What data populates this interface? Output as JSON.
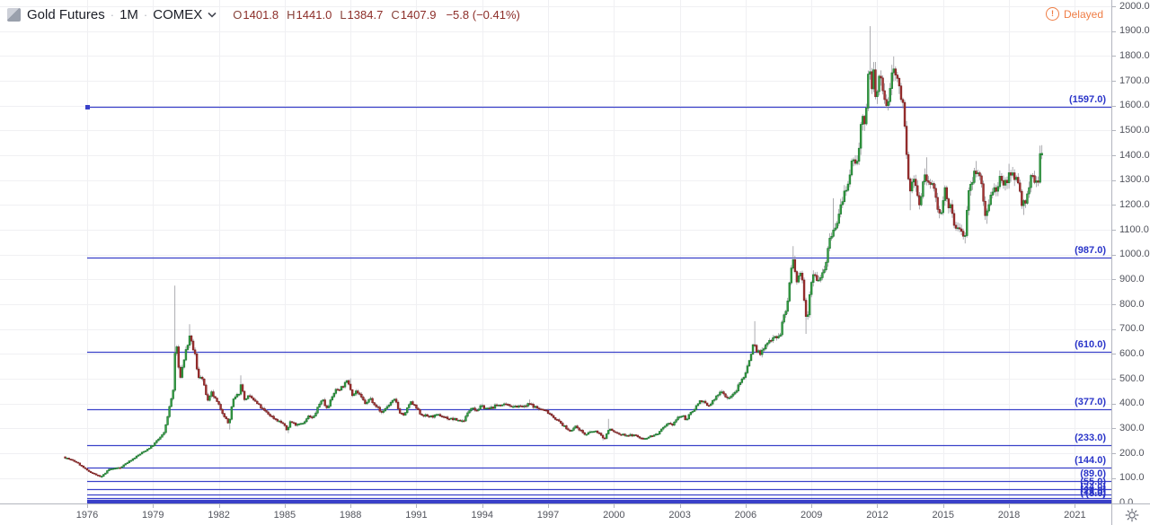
{
  "header": {
    "symbol_title": "Gold Futures",
    "interval": "1M",
    "exchange": "COMEX",
    "separator": "·",
    "ohlc": {
      "o_label": "O",
      "o": "1401.8",
      "h_label": "H",
      "h": "1441.0",
      "l_label": "L",
      "l": "1384.7",
      "c_label": "C",
      "c": "1407.9",
      "change": "−5.8 (−0.41%)"
    },
    "delayed_label": "Delayed",
    "delayed_icon_glyph": "!"
  },
  "colors": {
    "background": "#ffffff",
    "grid": "#f0f0f3",
    "axis_line": "#b2b5be",
    "axis_text": "#51535c",
    "candle_up_fill": "#3ca046",
    "candle_up_border": "#1e7d32",
    "candle_down_fill": "#a93434",
    "candle_down_border": "#7c2323",
    "wick": "#8a8a90",
    "fib_line": "#3a41c9",
    "fib_label": "#2a35c9",
    "ohlc_value": "#8c2d28",
    "delayed": "#ef7d45"
  },
  "chart_data": {
    "type": "candlestick",
    "title": "Gold Futures 1M COMEX",
    "legend_position": "top-left",
    "grid": true,
    "price_axis": {
      "min": 0,
      "max": 2000,
      "step": 100,
      "decimals": 1
    },
    "time_axis": {
      "tick_years": [
        1976,
        1979,
        1982,
        1985,
        1988,
        1991,
        1994,
        1997,
        2000,
        2003,
        2006,
        2009,
        2012,
        2015,
        2018,
        2021
      ]
    },
    "fib_levels": [
      {
        "value": 1597.0,
        "label": "(1597.0)"
      },
      {
        "value": 987.0,
        "label": "(987.0)"
      },
      {
        "value": 610.0,
        "label": "(610.0)"
      },
      {
        "value": 377.0,
        "label": "(377.0)"
      },
      {
        "value": 233.0,
        "label": "(233.0)"
      },
      {
        "value": 144.0,
        "label": "(144.0)"
      },
      {
        "value": 89.0,
        "label": "(89.0)"
      },
      {
        "value": 55.0,
        "label": "(55.0)"
      },
      {
        "value": 34.0,
        "label": "(34.0)"
      },
      {
        "value": 21.0,
        "label": "(21.0)"
      },
      {
        "value": 13.0,
        "label": "(13.0)"
      },
      {
        "value": 8.0,
        "label": "(8.0)"
      },
      {
        "value": 5.0,
        "label": ""
      },
      {
        "value": 3.0,
        "label": ""
      }
    ],
    "candles": {
      "interval": "1M",
      "start": 1975.0,
      "end": 2019.42,
      "first_open": 186,
      "noise_seed": 7,
      "noise_amp": 0.028,
      "close_keypoints": [
        [
          1975.0,
          183
        ],
        [
          1975.5,
          165
        ],
        [
          1976.0,
          131
        ],
        [
          1976.63,
          104
        ],
        [
          1977.0,
          136
        ],
        [
          1977.5,
          143
        ],
        [
          1978.0,
          173
        ],
        [
          1978.75,
          217
        ],
        [
          1979.0,
          233
        ],
        [
          1979.5,
          281
        ],
        [
          1979.75,
          385
        ],
        [
          1979.92,
          455
        ],
        [
          1980.04,
          675
        ],
        [
          1980.21,
          494
        ],
        [
          1980.5,
          614
        ],
        [
          1980.67,
          666
        ],
        [
          1980.92,
          596
        ],
        [
          1981.04,
          506
        ],
        [
          1981.21,
          513
        ],
        [
          1981.5,
          409
        ],
        [
          1981.67,
          443
        ],
        [
          1982.04,
          387
        ],
        [
          1982.46,
          315
        ],
        [
          1982.63,
          411
        ],
        [
          1982.96,
          448
        ],
        [
          1983.04,
          499
        ],
        [
          1983.13,
          408
        ],
        [
          1983.29,
          429
        ],
        [
          1983.5,
          422
        ],
        [
          1984.04,
          373
        ],
        [
          1984.5,
          342
        ],
        [
          1984.92,
          320
        ],
        [
          1985.13,
          288
        ],
        [
          1985.21,
          329
        ],
        [
          1985.5,
          317
        ],
        [
          1985.96,
          327
        ],
        [
          1986.04,
          350
        ],
        [
          1986.29,
          340
        ],
        [
          1986.71,
          423
        ],
        [
          1986.88,
          383
        ],
        [
          1987.04,
          400
        ],
        [
          1987.29,
          453
        ],
        [
          1987.54,
          462
        ],
        [
          1987.88,
          492
        ],
        [
          1988.13,
          426
        ],
        [
          1988.21,
          457
        ],
        [
          1988.71,
          397
        ],
        [
          1988.88,
          423
        ],
        [
          1989.29,
          378
        ],
        [
          1989.38,
          361
        ],
        [
          1989.88,
          408
        ],
        [
          1990.04,
          415
        ],
        [
          1990.21,
          368
        ],
        [
          1990.46,
          352
        ],
        [
          1990.71,
          408
        ],
        [
          1990.96,
          386
        ],
        [
          1991.21,
          356
        ],
        [
          1991.63,
          347
        ],
        [
          1992.04,
          354
        ],
        [
          1992.46,
          340
        ],
        [
          1992.96,
          333
        ],
        [
          1993.13,
          329
        ],
        [
          1993.54,
          392
        ],
        [
          1993.71,
          371
        ],
        [
          1993.96,
          390
        ],
        [
          1994.29,
          377
        ],
        [
          1994.71,
          396
        ],
        [
          1995.29,
          392
        ],
        [
          1995.96,
          387
        ],
        [
          1996.13,
          400
        ],
        [
          1996.5,
          382
        ],
        [
          1996.96,
          369
        ],
        [
          1997.54,
          324
        ],
        [
          1997.96,
          290
        ],
        [
          1998.29,
          308
        ],
        [
          1998.71,
          273
        ],
        [
          1998.96,
          288
        ],
        [
          1999.29,
          286
        ],
        [
          1999.54,
          255
        ],
        [
          1999.79,
          300
        ],
        [
          1999.96,
          288
        ],
        [
          2000.29,
          275
        ],
        [
          2000.96,
          272
        ],
        [
          2001.29,
          258
        ],
        [
          2001.96,
          277
        ],
        [
          2002.46,
          318
        ],
        [
          2002.63,
          313
        ],
        [
          2002.96,
          348
        ],
        [
          2003.13,
          350
        ],
        [
          2003.29,
          336
        ],
        [
          2003.96,
          416
        ],
        [
          2004.29,
          388
        ],
        [
          2004.92,
          454
        ],
        [
          2005.13,
          422
        ],
        [
          2005.46,
          436
        ],
        [
          2005.96,
          518
        ],
        [
          2006.13,
          561
        ],
        [
          2006.38,
          653
        ],
        [
          2006.46,
          613
        ],
        [
          2006.71,
          604
        ],
        [
          2006.96,
          638
        ],
        [
          2007.29,
          677
        ],
        [
          2007.54,
          665
        ],
        [
          2007.71,
          743
        ],
        [
          2007.88,
          783
        ],
        [
          2008.04,
          923
        ],
        [
          2008.17,
          975
        ],
        [
          2008.33,
          885
        ],
        [
          2008.54,
          930
        ],
        [
          2008.79,
          725
        ],
        [
          2008.88,
          815
        ],
        [
          2008.96,
          884
        ],
        [
          2009.13,
          940
        ],
        [
          2009.29,
          888
        ],
        [
          2009.46,
          927
        ],
        [
          2009.63,
          953
        ],
        [
          2009.79,
          1040
        ],
        [
          2009.96,
          1096
        ],
        [
          2010.13,
          1108
        ],
        [
          2010.29,
          1179
        ],
        [
          2010.46,
          1244
        ],
        [
          2010.63,
          1246
        ],
        [
          2010.79,
          1337
        ],
        [
          2010.96,
          1421
        ],
        [
          2011.04,
          1327
        ],
        [
          2011.29,
          1556
        ],
        [
          2011.46,
          1502
        ],
        [
          2011.63,
          1831
        ],
        [
          2011.71,
          1622
        ],
        [
          2011.83,
          1745
        ],
        [
          2011.96,
          1566
        ],
        [
          2012.04,
          1737
        ],
        [
          2012.29,
          1664
        ],
        [
          2012.38,
          1562
        ],
        [
          2012.63,
          1692
        ],
        [
          2012.71,
          1776
        ],
        [
          2012.96,
          1675
        ],
        [
          2013.04,
          1660
        ],
        [
          2013.21,
          1597
        ],
        [
          2013.29,
          1472
        ],
        [
          2013.46,
          1224
        ],
        [
          2013.63,
          1313
        ],
        [
          2013.96,
          1202
        ],
        [
          2014.13,
          1321
        ],
        [
          2014.29,
          1288
        ],
        [
          2014.54,
          1285
        ],
        [
          2014.79,
          1173
        ],
        [
          2014.96,
          1184
        ],
        [
          2015.04,
          1283
        ],
        [
          2015.21,
          1183
        ],
        [
          2015.38,
          1191
        ],
        [
          2015.54,
          1095
        ],
        [
          2015.79,
          1115
        ],
        [
          2015.96,
          1060
        ],
        [
          2016.04,
          1116
        ],
        [
          2016.13,
          1234
        ],
        [
          2016.29,
          1293
        ],
        [
          2016.54,
          1351
        ],
        [
          2016.71,
          1313
        ],
        [
          2016.88,
          1178
        ],
        [
          2016.96,
          1150
        ],
        [
          2017.04,
          1208
        ],
        [
          2017.29,
          1266
        ],
        [
          2017.46,
          1241
        ],
        [
          2017.63,
          1320
        ],
        [
          2017.71,
          1283
        ],
        [
          2017.96,
          1305
        ],
        [
          2018.04,
          1343
        ],
        [
          2018.21,
          1323
        ],
        [
          2018.38,
          1300
        ],
        [
          2018.54,
          1224
        ],
        [
          2018.63,
          1202
        ],
        [
          2018.79,
          1215
        ],
        [
          2018.96,
          1281
        ],
        [
          2019.04,
          1321
        ],
        [
          2019.13,
          1313
        ],
        [
          2019.29,
          1286
        ],
        [
          2019.38,
          1306
        ],
        [
          2019.42,
          1413.7
        ]
      ],
      "wick_highs": [
        [
          1980.04,
          875
        ],
        [
          1980.67,
          720
        ],
        [
          1983.04,
          514
        ],
        [
          1987.96,
          502
        ],
        [
          1996.13,
          417
        ],
        [
          1999.79,
          339
        ],
        [
          2006.38,
          732
        ],
        [
          2008.17,
          1034
        ],
        [
          2009.96,
          1227
        ],
        [
          2011.63,
          1920
        ],
        [
          2012.71,
          1798
        ],
        [
          2014.21,
          1392
        ],
        [
          2016.54,
          1377
        ],
        [
          2018.04,
          1366
        ],
        [
          2019.42,
          1439
        ]
      ],
      "wick_lows": [
        [
          1976.63,
          101
        ],
        [
          1982.46,
          296
        ],
        [
          1985.13,
          281
        ],
        [
          1999.54,
          252
        ],
        [
          2001.29,
          255
        ],
        [
          2008.79,
          681
        ],
        [
          2013.46,
          1179
        ],
        [
          2015.96,
          1045
        ],
        [
          2016.96,
          1124
        ],
        [
          2018.63,
          1160
        ]
      ],
      "current_bar": {
        "time": 2019.5,
        "open": 1401.8,
        "high": 1441.0,
        "low": 1384.7,
        "close": 1407.9
      }
    }
  }
}
